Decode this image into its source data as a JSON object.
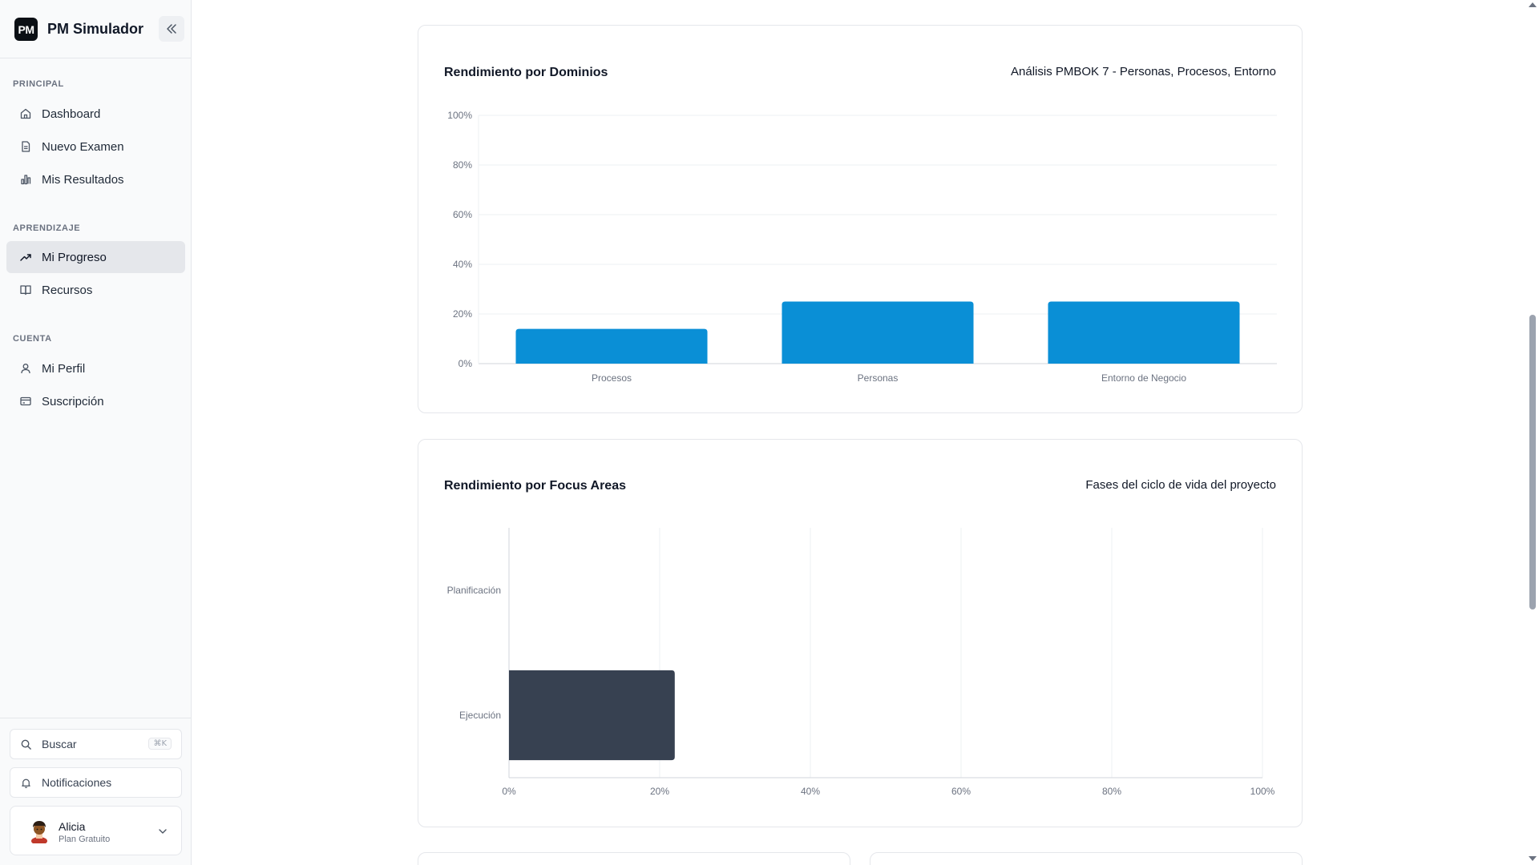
{
  "app": {
    "logo_text": "PM",
    "name": "PM Simulador"
  },
  "sidebar": {
    "sections": [
      {
        "label": "PRINCIPAL"
      },
      {
        "label": "APRENDIZAJE"
      },
      {
        "label": "CUENTA"
      }
    ],
    "items": [
      {
        "label": "Dashboard",
        "icon": "home-icon"
      },
      {
        "label": "Nuevo Examen",
        "icon": "document-icon"
      },
      {
        "label": "Mis Resultados",
        "icon": "bar-chart-icon"
      },
      {
        "label": "Mi Progreso",
        "icon": "trending-up-icon",
        "active": true
      },
      {
        "label": "Recursos",
        "icon": "book-icon"
      },
      {
        "label": "Mi Perfil",
        "icon": "user-icon"
      },
      {
        "label": "Suscripción",
        "icon": "credit-card-icon"
      }
    ],
    "search": {
      "label": "Buscar",
      "shortcut": "⌘K"
    },
    "notifications": {
      "label": "Notificaciones"
    },
    "user": {
      "name": "Alicia",
      "plan": "Plan Gratuito"
    }
  },
  "domains_card": {
    "title": "Rendimiento por Dominios",
    "subtitle": "Análisis PMBOK 7 - Personas, Procesos, Entorno"
  },
  "focus_card": {
    "title": "Rendimiento por Focus Areas",
    "subtitle": "Fases del ciclo de vida del proyecto"
  },
  "colors": {
    "bar_blue": "#0a8fd6",
    "bar_dark": "#374151"
  },
  "chart_data": [
    {
      "type": "bar",
      "orientation": "vertical",
      "categories": [
        "Procesos",
        "Personas",
        "Entorno de Negocio"
      ],
      "values": [
        14,
        25,
        25
      ],
      "ylim": [
        0,
        100
      ],
      "yticks": [
        "0%",
        "20%",
        "40%",
        "60%",
        "80%",
        "100%"
      ],
      "grid": true
    },
    {
      "type": "bar",
      "orientation": "horizontal",
      "categories": [
        "Planificación",
        "Ejecución"
      ],
      "values": [
        0,
        22
      ],
      "xlim": [
        0,
        100
      ],
      "xticks": [
        "0%",
        "20%",
        "40%",
        "60%",
        "80%",
        "100%"
      ],
      "grid": true
    }
  ]
}
